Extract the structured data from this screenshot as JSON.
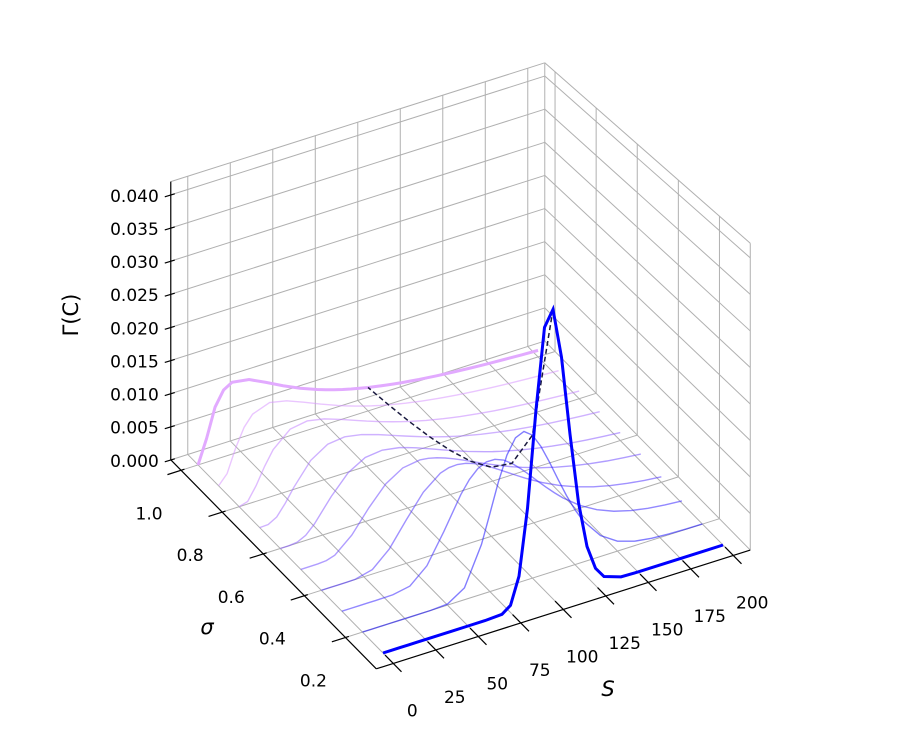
{
  "chart_data": {
    "type": "line3d",
    "xlabel": "S",
    "ylabel": "σ",
    "zlabel": "Γ(C)",
    "xlim": [
      -10,
      210
    ],
    "ylim": [
      0.05,
      1.05
    ],
    "zlim": [
      0,
      0.042
    ],
    "xticks": [
      0,
      25,
      50,
      75,
      100,
      125,
      150,
      175,
      200
    ],
    "yticks": [
      0.2,
      0.4,
      0.6,
      0.8,
      {
        "value": 1,
        "label": "1.0"
      }
    ],
    "zticks": [
      {
        "value": 0,
        "label": "0.000"
      },
      0.005,
      {
        "value": 0.01,
        "label": "0.010"
      },
      0.015,
      {
        "value": 0.02,
        "label": "0.020"
      },
      0.025,
      {
        "value": 0.03,
        "label": "0.030"
      },
      0.035,
      {
        "value": 0.04,
        "label": "0.040"
      }
    ],
    "grid": true,
    "x": [
      0,
      5,
      10,
      15,
      20,
      30,
      40,
      50,
      60,
      70,
      75,
      80,
      85,
      90,
      95,
      100,
      105,
      110,
      115,
      120,
      125,
      130,
      140,
      150,
      160,
      170,
      180,
      190,
      200
    ],
    "sigmas": [
      0.1,
      0.2,
      0.3,
      0.4,
      0.5,
      0.6,
      0.7,
      0.8,
      0.9,
      1
    ],
    "series": [
      {
        "color": "#0000ff",
        "values": [
          0,
          0,
          0,
          0,
          0,
          0,
          0,
          0,
          0,
          0.00012,
          0.00098,
          0.00462,
          0.01358,
          0.02678,
          0.03773,
          0.03984,
          0.03288,
          0.02193,
          0.01216,
          0.00575,
          0.00237,
          0.00086,
          8e-05,
          1e-05,
          0,
          0,
          0,
          0,
          0
        ]
      },
      {
        "color": "#1c13ff",
        "values": [
          0,
          0,
          0,
          0,
          0,
          0,
          0,
          0.00014,
          0.00164,
          0.00691,
          0.01086,
          0.01489,
          0.01821,
          0.02023,
          0.02074,
          0.01985,
          0.0179,
          0.01536,
          0.01261,
          0.00997,
          0.00762,
          0.00566,
          0.00291,
          0.00138,
          0.00062,
          0.00027,
          0.00011,
          4e-05,
          2e-05
        ]
      },
      {
        "color": "#3826ff",
        "values": [
          0,
          0,
          0,
          0,
          0,
          3e-05,
          0.00049,
          0.00258,
          0.00664,
          0.01107,
          0.01278,
          0.01394,
          0.01449,
          0.01448,
          0.014,
          0.01315,
          0.01206,
          0.01084,
          0.00956,
          0.00832,
          0.00714,
          0.00605,
          0.00423,
          0.00287,
          0.0019,
          0.00124,
          0.0008,
          0.00051,
          0.00032
        ]
      },
      {
        "color": "#5439ff",
        "values": [
          0,
          0,
          0,
          0,
          3e-05,
          0.00064,
          0.0028,
          0.00616,
          0.00931,
          0.01122,
          0.01162,
          0.01169,
          0.01148,
          0.01106,
          0.01047,
          0.00978,
          0.00902,
          0.00824,
          0.00746,
          0.0067,
          0.00599,
          0.00532,
          0.00414,
          0.00318,
          0.00242,
          0.00183,
          0.00138,
          0.00103,
          0.00077
        ]
      },
      {
        "color": "#704cff",
        "values": [
          0,
          0,
          1e-05,
          0.0001,
          0.00049,
          0.00259,
          0.0057,
          0.00837,
          0.00987,
          0.01024,
          0.01009,
          0.00978,
          0.00936,
          0.00886,
          0.00831,
          0.00773,
          0.00715,
          0.00658,
          0.00603,
          0.0055,
          0.00501,
          0.00455,
          0.00372,
          0.00303,
          0.00246,
          0.00199,
          0.0016,
          0.0013,
          0.00105
        ]
      },
      {
        "color": "#8c5fff",
        "values": [
          0,
          0,
          0.00013,
          0.00074,
          0.00195,
          0.00517,
          0.00783,
          0.00923,
          0.00952,
          0.0091,
          0.00872,
          0.00829,
          0.00782,
          0.00733,
          0.00684,
          0.00636,
          0.00589,
          0.00544,
          0.00502,
          0.00462,
          0.00424,
          0.0039,
          0.00328,
          0.00275,
          0.00231,
          0.00194,
          0.00163,
          0.00137,
          0.00115
        ]
      },
      {
        "color": "#a872ff",
        "values": [
          0,
          5e-05,
          0.00076,
          0.00235,
          0.00426,
          0.00743,
          0.009,
          0.00929,
          0.00884,
          0.00804,
          0.00758,
          0.00712,
          0.00666,
          0.00621,
          0.00577,
          0.00536,
          0.00497,
          0.0046,
          0.00426,
          0.00394,
          0.00365,
          0.00337,
          0.00288,
          0.00247,
          0.00211,
          0.00181,
          0.00156,
          0.00134,
          0.00116
        ]
      },
      {
        "color": "#c485ff",
        "values": [
          0,
          0.00037,
          0.00231,
          0.00476,
          0.0068,
          0.00903,
          0.00944,
          0.00895,
          0.00808,
          0.00712,
          0.00664,
          0.00619,
          0.00575,
          0.00535,
          0.00496,
          0.0046,
          0.00427,
          0.00396,
          0.00368,
          0.00341,
          0.00317,
          0.00294,
          0.00254,
          0.0022,
          0.00191,
          0.00167,
          0.00146,
          0.00127,
          0.00112
        ]
      },
      {
        "color": "#d898ff",
        "values": [
          0,
          0.00141,
          0.0048,
          0.00748,
          0.00905,
          0.00996,
          0.00943,
          0.00842,
          0.00734,
          0.00632,
          0.00586,
          0.00543,
          0.00503,
          0.00466,
          0.00432,
          0.00401,
          0.00372,
          0.00345,
          0.00321,
          0.00299,
          0.00278,
          0.00259,
          0.00225,
          0.00197,
          0.00173,
          0.00152,
          0.00134,
          0.00119,
          0.00105
        ]
      },
      {
        "color": "#e2aaff",
        "values": [
          0,
          0.00354,
          0.00786,
          0.01002,
          0.01078,
          0.01038,
          0.00915,
          0.00783,
          0.00665,
          0.00564,
          0.0052,
          0.0048,
          0.00443,
          0.0041,
          0.0038,
          0.00352,
          0.00327,
          0.00304,
          0.00283,
          0.00263,
          0.00246,
          0.00229,
          0.00201,
          0.00177,
          0.00156,
          0.00138,
          0.00123,
          0.00109,
          0.00098
        ]
      }
    ],
    "dashed": {
      "x": 100,
      "color": "#1a1a40",
      "values": [
        0.03984,
        0.01985,
        0.01315,
        0.00978,
        0.00773,
        0.00636,
        0.00536,
        0.0046,
        0.00401,
        0.00352
      ]
    }
  }
}
